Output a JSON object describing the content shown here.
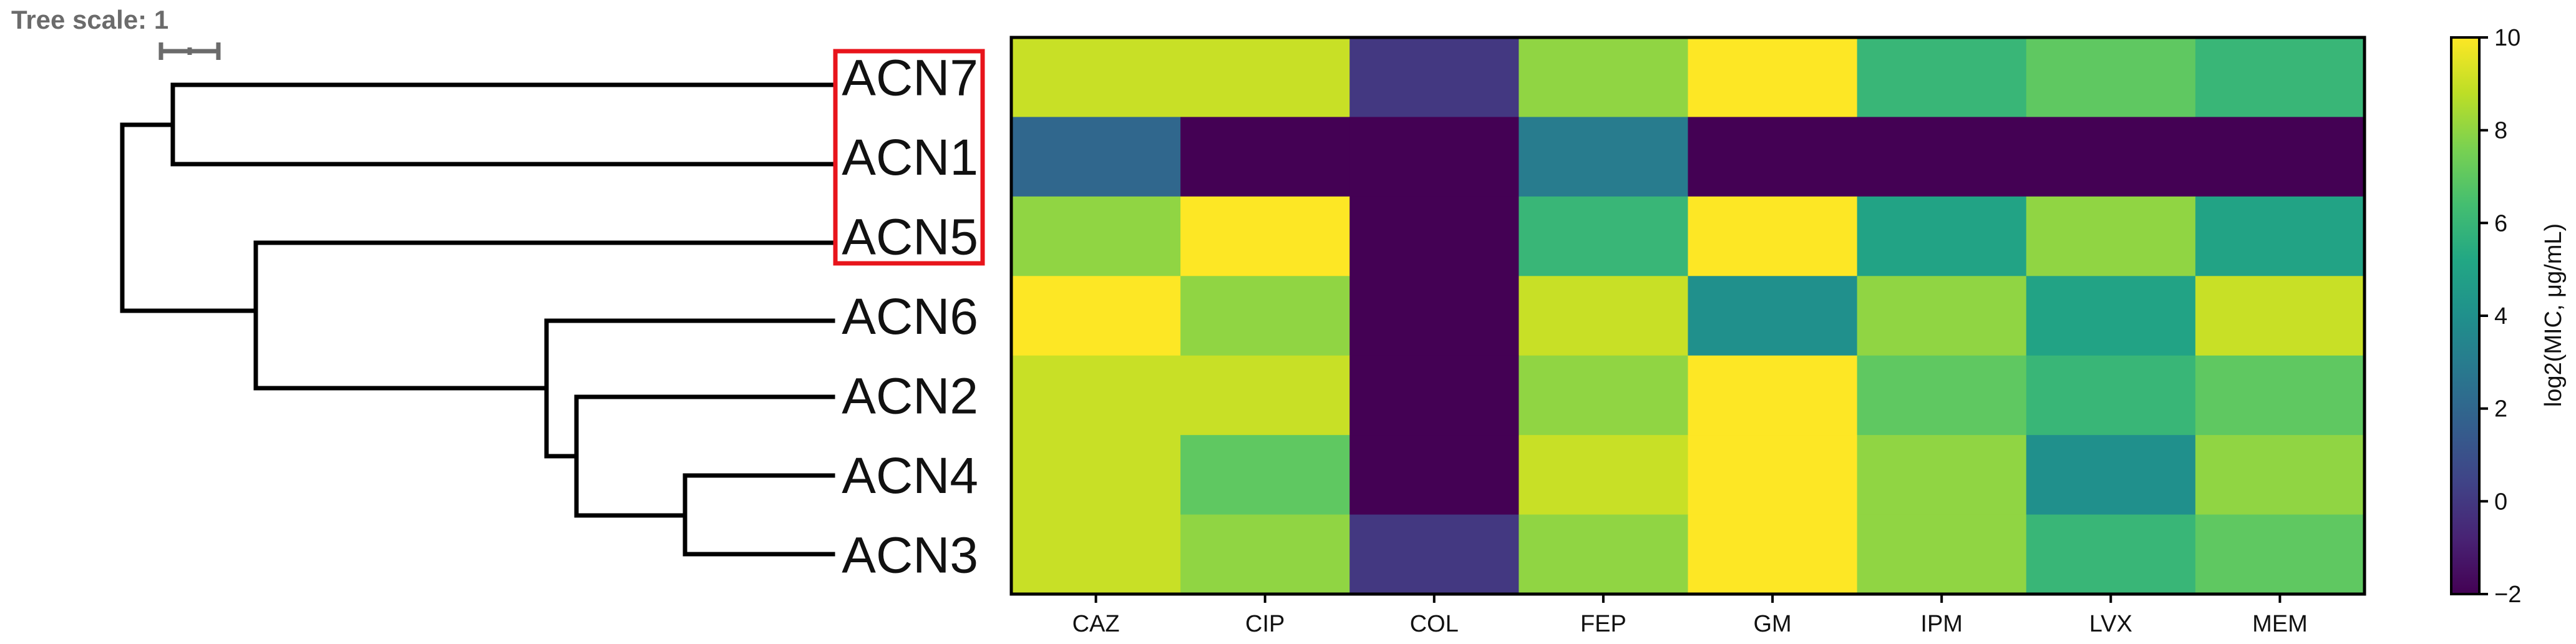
{
  "tree_scale": {
    "label": "Tree scale: 1"
  },
  "highlight_color": "#e8141b",
  "chart_data": {
    "type": "heatmap",
    "rows": [
      "ACN7",
      "ACN1",
      "ACN5",
      "ACN6",
      "ACN2",
      "ACN4",
      "ACN3"
    ],
    "highlighted_rows": [
      "ACN7",
      "ACN1",
      "ACN5"
    ],
    "columns": [
      "CAZ",
      "CIP",
      "COL",
      "FEP",
      "GM",
      "IPM",
      "LVX",
      "MEM"
    ],
    "values": [
      [
        9,
        9,
        0,
        8,
        10,
        6,
        7,
        6
      ],
      [
        2,
        -2,
        -2,
        3,
        -2,
        -2,
        -2,
        -2
      ],
      [
        8,
        10,
        -2,
        6,
        10,
        5,
        8,
        5
      ],
      [
        10,
        8,
        -2,
        9,
        4,
        8,
        5,
        9
      ],
      [
        9,
        9,
        -2,
        8,
        10,
        7,
        6,
        7
      ],
      [
        9,
        7,
        -2,
        9,
        10,
        8,
        4,
        8
      ],
      [
        9,
        8,
        0,
        8,
        10,
        8,
        6,
        7
      ]
    ],
    "colormap": "viridis",
    "colorbar": {
      "label": "log2(MIC, μg/mL)",
      "range": [
        -2,
        10
      ],
      "ticks": [
        "−2",
        "0",
        "2",
        "4",
        "6",
        "8",
        "10"
      ]
    },
    "dendrogram": {
      "type": "tree",
      "newick": "((ACN7,ACN1),(ACN5,(ACN6,(ACN2,(ACN4,ACN3)))));"
    }
  }
}
